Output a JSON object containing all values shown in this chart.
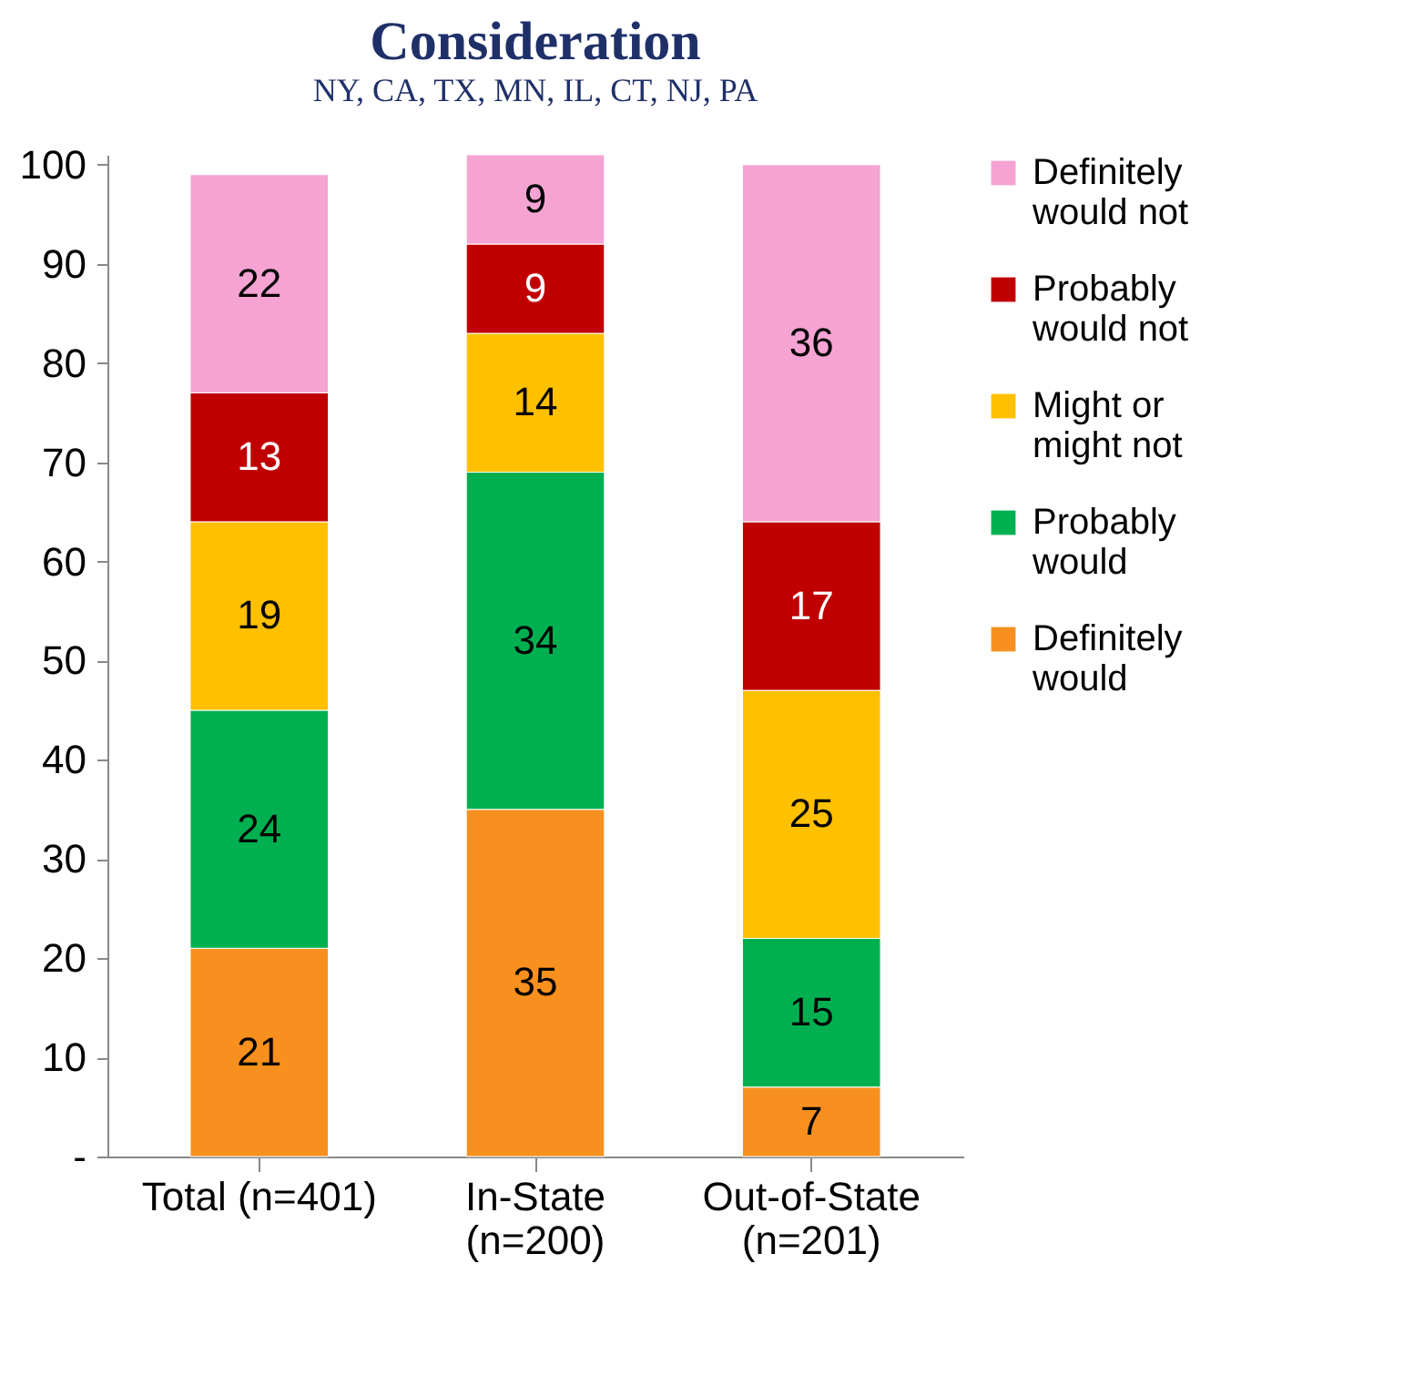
{
  "chart_data": {
    "type": "bar",
    "title": "Consideration",
    "subtitle": "NY, CA, TX, MN, IL, CT, NJ, PA",
    "categories": [
      "Total (n=401)",
      "In-State (n=200)",
      "Out-of-State (n=201)"
    ],
    "stacked": true,
    "data_labels": true,
    "legend": "right",
    "grid": false,
    "ylim": [
      0,
      101
    ],
    "yticks": [
      {
        "value": 0,
        "label": "-"
      },
      10,
      20,
      30,
      40,
      50,
      60,
      70,
      80,
      90,
      100
    ],
    "series": [
      {
        "name": "Definitely would",
        "color": "#f7901e",
        "values": [
          21,
          35,
          7
        ]
      },
      {
        "name": "Probably would",
        "color": "#00b050",
        "values": [
          24,
          34,
          15
        ]
      },
      {
        "name": "Might or might not",
        "color": "#ffc000",
        "values": [
          19,
          14,
          25
        ]
      },
      {
        "name": "Probably would not",
        "color": "#c00000",
        "values": [
          13,
          9,
          17
        ]
      },
      {
        "name": "Definitely would not",
        "color": "#f4a3d3",
        "values": [
          22,
          9,
          36
        ]
      }
    ]
  }
}
